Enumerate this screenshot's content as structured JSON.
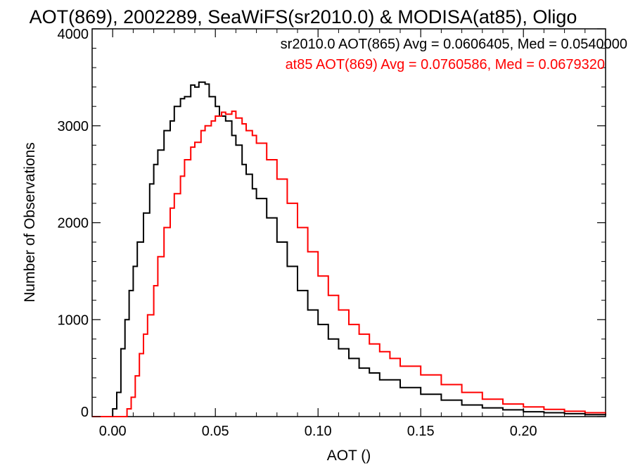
{
  "chart_data": {
    "type": "line",
    "title": "AOT(869), 2002289, SeaWiFS(sr2010.0) & MODISA(at85), Oligo",
    "xlabel": "AOT ()",
    "ylabel": "Number of Observations",
    "xlim": [
      -0.01,
      0.24
    ],
    "ylim": [
      0,
      4000
    ],
    "x_ticks": [
      0.0,
      0.05,
      0.1,
      0.15,
      0.2
    ],
    "x_tick_labels": [
      "0.00",
      "0.05",
      "0.10",
      "0.15",
      "0.20"
    ],
    "y_ticks": [
      0,
      1000,
      2000,
      3000,
      4000
    ],
    "y_tick_labels": [
      "0",
      "1000",
      "2000",
      "3000",
      "4000"
    ],
    "grid": false,
    "legend_position": "top-right",
    "step": true,
    "series": [
      {
        "name": "sr2010.0 AOT(865) Avg = 0.0606405, Med = 0.0540000",
        "color": "#000000",
        "x": [
          -0.01,
          -0.001,
          0.0,
          0.002,
          0.004,
          0.006,
          0.008,
          0.01,
          0.012,
          0.015,
          0.018,
          0.02,
          0.022,
          0.025,
          0.028,
          0.03,
          0.033,
          0.035,
          0.038,
          0.04,
          0.042,
          0.045,
          0.047,
          0.05,
          0.052,
          0.055,
          0.058,
          0.06,
          0.063,
          0.065,
          0.068,
          0.07,
          0.075,
          0.08,
          0.085,
          0.09,
          0.095,
          0.1,
          0.105,
          0.11,
          0.115,
          0.12,
          0.125,
          0.13,
          0.14,
          0.15,
          0.16,
          0.17,
          0.18,
          0.19,
          0.2,
          0.21,
          0.22,
          0.23,
          0.24
        ],
        "y": [
          0,
          0,
          80,
          250,
          700,
          1000,
          1300,
          1550,
          1800,
          2100,
          2400,
          2600,
          2750,
          2950,
          3050,
          3200,
          3280,
          3300,
          3420,
          3400,
          3450,
          3430,
          3300,
          3200,
          3100,
          3050,
          2900,
          2800,
          2600,
          2500,
          2350,
          2250,
          2050,
          1800,
          1550,
          1300,
          1100,
          950,
          800,
          700,
          600,
          500,
          450,
          380,
          300,
          230,
          170,
          120,
          90,
          70,
          50,
          40,
          30,
          20,
          15
        ]
      },
      {
        "name": "at85 AOT(869) Avg = 0.0760586, Med = 0.0679320",
        "color": "#ff0000",
        "x": [
          -0.01,
          0.005,
          0.007,
          0.009,
          0.011,
          0.013,
          0.015,
          0.017,
          0.02,
          0.022,
          0.025,
          0.028,
          0.03,
          0.033,
          0.035,
          0.038,
          0.04,
          0.043,
          0.045,
          0.048,
          0.05,
          0.053,
          0.055,
          0.058,
          0.06,
          0.063,
          0.065,
          0.068,
          0.07,
          0.075,
          0.08,
          0.085,
          0.09,
          0.095,
          0.1,
          0.105,
          0.11,
          0.115,
          0.12,
          0.125,
          0.13,
          0.135,
          0.14,
          0.15,
          0.16,
          0.17,
          0.18,
          0.19,
          0.2,
          0.21,
          0.22,
          0.23,
          0.24
        ],
        "y": [
          0,
          0,
          80,
          200,
          420,
          650,
          850,
          1050,
          1350,
          1650,
          1950,
          2150,
          2300,
          2480,
          2650,
          2780,
          2830,
          2950,
          3000,
          3050,
          3100,
          3140,
          3120,
          3150,
          3080,
          3020,
          2950,
          2900,
          2820,
          2650,
          2450,
          2200,
          1950,
          1700,
          1450,
          1250,
          1100,
          950,
          850,
          750,
          670,
          600,
          520,
          430,
          330,
          250,
          180,
          130,
          100,
          75,
          55,
          40,
          30
        ]
      }
    ]
  }
}
